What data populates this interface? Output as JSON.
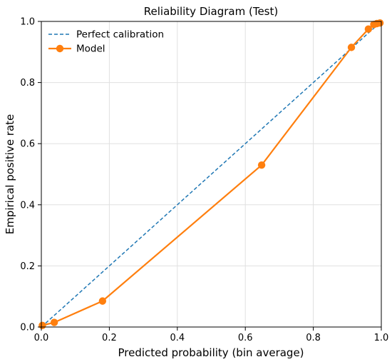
{
  "chart_data": {
    "type": "line",
    "title": "Reliability Diagram (Test)",
    "xlabel": "Predicted probability (bin average)",
    "ylabel": "Empirical positive rate",
    "xlim": [
      0.0,
      1.0
    ],
    "ylim": [
      0.0,
      1.0
    ],
    "xticks": [
      "0.0",
      "0.2",
      "0.4",
      "0.6",
      "0.8",
      "1.0"
    ],
    "yticks": [
      "0.0",
      "0.2",
      "0.4",
      "0.6",
      "0.8",
      "1.0"
    ],
    "grid": true,
    "legend_position": "top-left",
    "series": [
      {
        "name": "Perfect calibration",
        "style": "dashed",
        "color": "#1f77b4",
        "x": [
          0.0,
          1.0
        ],
        "y": [
          0.0,
          1.0
        ]
      },
      {
        "name": "Model",
        "style": "solid-markers",
        "color": "#ff7f0e",
        "x": [
          0.003,
          0.038,
          0.18,
          0.648,
          0.912,
          0.962,
          0.978,
          0.987,
          0.996
        ],
        "y": [
          0.005,
          0.015,
          0.085,
          0.53,
          0.915,
          0.975,
          0.99,
          0.993,
          0.995
        ]
      }
    ]
  }
}
